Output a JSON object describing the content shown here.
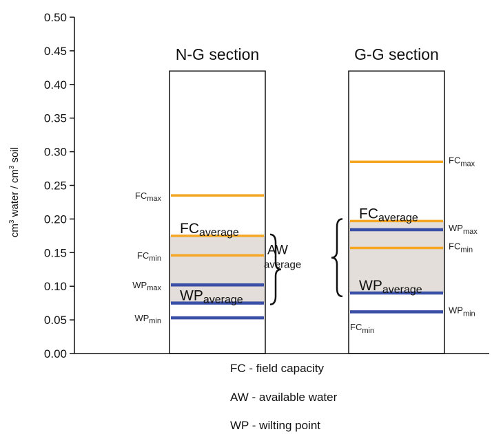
{
  "chart_data": {
    "type": "bar",
    "ylabel_parts": [
      "cm",
      "3",
      " water / cm",
      "3",
      " soil"
    ],
    "yticks": [
      "0.00",
      "0.05",
      "0.10",
      "0.15",
      "0.20",
      "0.25",
      "0.30",
      "0.35",
      "0.40",
      "0.45",
      "0.50"
    ],
    "ylim": [
      0,
      0.5
    ],
    "grid": false,
    "colors": {
      "fc": "#F5A623",
      "wp": "#3A4FA6",
      "aw_fill": "#E3DEDA"
    },
    "sections": [
      {
        "title": "N-G section",
        "aw_range": [
          0.075,
          0.175
        ],
        "lines": [
          {
            "base": "FC",
            "sub": "max",
            "value": 0.235,
            "kind": "fc",
            "side": "left"
          },
          {
            "base": "FC",
            "sub": "average",
            "value": 0.175,
            "kind": "fc",
            "side": "inside",
            "big": true
          },
          {
            "base": "FC",
            "sub": "min",
            "value": 0.146,
            "kind": "fc",
            "side": "left"
          },
          {
            "base": "WP",
            "sub": "max",
            "value": 0.102,
            "kind": "wp",
            "side": "left"
          },
          {
            "base": "WP",
            "sub": "average",
            "value": 0.075,
            "kind": "wp",
            "side": "inside",
            "big": true
          },
          {
            "base": "WP",
            "sub": "min",
            "value": 0.053,
            "kind": "wp",
            "side": "left"
          }
        ]
      },
      {
        "title": "G-G section",
        "aw_range": [
          0.09,
          0.197
        ],
        "lines": [
          {
            "base": "FC",
            "sub": "max",
            "value": 0.285,
            "kind": "fc",
            "side": "right"
          },
          {
            "base": "FC",
            "sub": "average",
            "value": 0.197,
            "kind": "fc",
            "side": "inside",
            "big": true
          },
          {
            "base": "WP",
            "sub": "max",
            "value": 0.184,
            "kind": "wp",
            "side": "right"
          },
          {
            "base": "FC",
            "sub": "min",
            "value": 0.157,
            "kind": "fc",
            "side": "right"
          },
          {
            "base": "WP",
            "sub": "average",
            "value": 0.09,
            "kind": "wp",
            "side": "inside",
            "big": true
          },
          {
            "base": "WP",
            "sub": "min",
            "value": 0.062,
            "kind": "wp",
            "side": "right"
          },
          {
            "base": "FC",
            "sub": "min",
            "value": 0.03,
            "kind": "label-only",
            "side": "inside-small"
          }
        ]
      }
    ],
    "aw_annotation": {
      "base": "AW",
      "sub": "average"
    }
  },
  "legend": [
    "FC - field capacity",
    "AW - available water",
    "WP - wilting point"
  ]
}
